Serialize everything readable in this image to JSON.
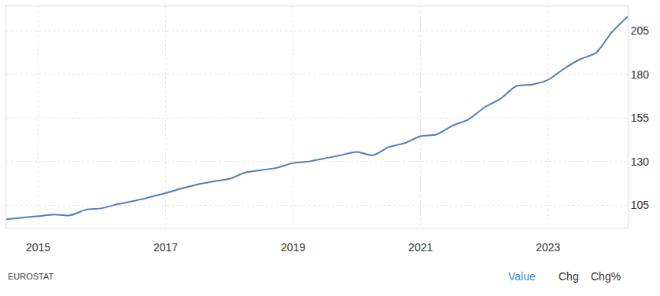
{
  "chart_data": {
    "type": "line",
    "x": [
      2014.5,
      2014.75,
      2015.0,
      2015.25,
      2015.5,
      2015.75,
      2016.0,
      2016.25,
      2016.5,
      2016.75,
      2017.0,
      2017.25,
      2017.5,
      2017.75,
      2018.0,
      2018.25,
      2018.5,
      2018.75,
      2019.0,
      2019.25,
      2019.5,
      2019.75,
      2020.0,
      2020.25,
      2020.5,
      2020.75,
      2021.0,
      2021.25,
      2021.5,
      2021.75,
      2022.0,
      2022.25,
      2022.5,
      2022.75,
      2023.0,
      2023.25,
      2023.5,
      2023.75,
      2024.0,
      2024.25
    ],
    "values": [
      96.8,
      97.7,
      98.6,
      99.5,
      99.1,
      102.3,
      103.2,
      105.5,
      107.3,
      109.5,
      111.8,
      114.5,
      116.8,
      118.6,
      120.0,
      123.6,
      125.0,
      126.4,
      129.1,
      130.0,
      131.8,
      133.6,
      135.5,
      133.6,
      138.2,
      140.5,
      144.5,
      145.5,
      150.5,
      154.1,
      160.9,
      165.9,
      173.2,
      174.1,
      176.8,
      183.2,
      188.6,
      192.3,
      204.1,
      213.2
    ],
    "color": "#4f7fc0",
    "line_style": "solid",
    "xlim": [
      2014.5,
      2024.25
    ],
    "xticks": [
      2015,
      2017,
      2019,
      2021,
      2023
    ],
    "ylim": [
      92,
      219
    ],
    "yticks": [
      105,
      130,
      155,
      180,
      205
    ],
    "grid": true,
    "annotations": [
      "EUROSTAT",
      "Value",
      "Chg",
      "Chg%"
    ]
  }
}
